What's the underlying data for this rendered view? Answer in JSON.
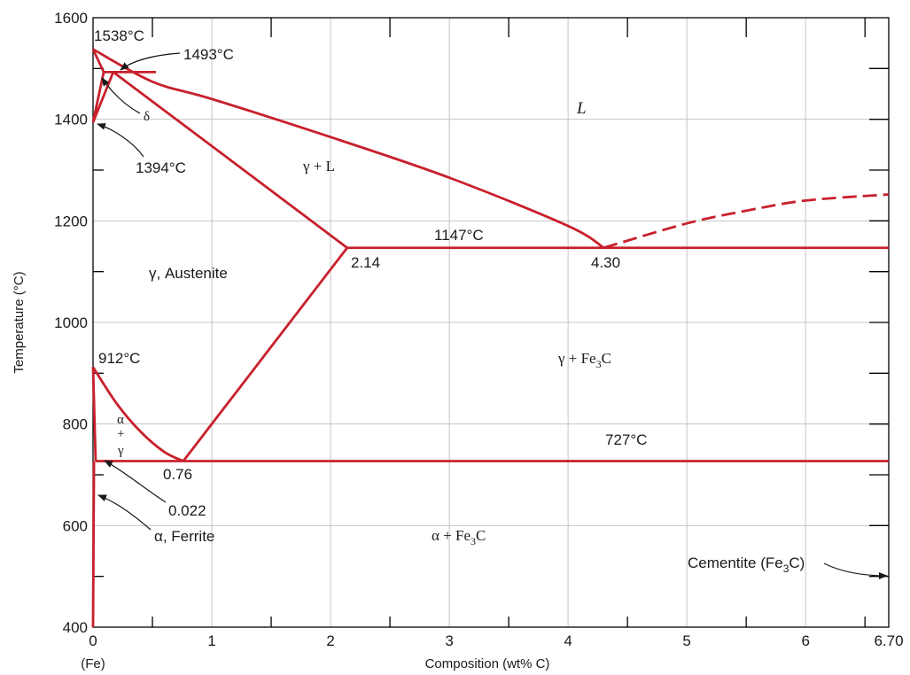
{
  "chart_data": {
    "type": "line",
    "title": "",
    "xlabel": "Composition (wt% C)",
    "ylabel": "Temperature (°C)",
    "xlim": [
      0,
      6.7
    ],
    "ylim": [
      400,
      1600
    ],
    "x_ticks": [
      {
        "value": 0,
        "label": "0"
      },
      {
        "value": 1,
        "label": "1"
      },
      {
        "value": 2,
        "label": "2"
      },
      {
        "value": 3,
        "label": "3"
      },
      {
        "value": 4,
        "label": "4"
      },
      {
        "value": 5,
        "label": "5"
      },
      {
        "value": 6,
        "label": "6"
      },
      {
        "value": 6.7,
        "label": "6.70"
      }
    ],
    "x_sub_label": "(Fe)",
    "y_ticks": [
      {
        "value": 400,
        "label": "400"
      },
      {
        "value": 600,
        "label": "600"
      },
      {
        "value": 800,
        "label": "800"
      },
      {
        "value": 1000,
        "label": "1000"
      },
      {
        "value": 1200,
        "label": "1200"
      },
      {
        "value": 1400,
        "label": "1400"
      },
      {
        "value": 1600,
        "label": "1600"
      }
    ],
    "grid": true,
    "line_color": "#c8202c",
    "series": [
      {
        "style": "solid",
        "x": [
          0,
          0.5,
          1,
          2,
          3,
          4,
          4.3
        ],
        "y": [
          1538,
          1474,
          1440,
          1365,
          1285,
          1190,
          1147
        ]
      },
      {
        "style": "solid",
        "x": [
          0,
          0.09
        ],
        "y": [
          1538,
          1493
        ]
      },
      {
        "style": "solid",
        "x": [
          0.09,
          0.53
        ],
        "y": [
          1493,
          1493
        ]
      },
      {
        "style": "solid",
        "x": [
          0,
          0.09
        ],
        "y": [
          1394,
          1493
        ]
      },
      {
        "style": "solid",
        "x": [
          0,
          0.17
        ],
        "y": [
          1394,
          1493
        ]
      },
      {
        "style": "solid",
        "x": [
          0.17,
          2.14
        ],
        "y": [
          1493,
          1147
        ]
      },
      {
        "style": "solid",
        "x": [
          2.14,
          6.7
        ],
        "y": [
          1147,
          1147
        ]
      },
      {
        "style": "solid",
        "x": [
          0,
          0.2,
          0.4,
          0.6,
          0.76
        ],
        "y": [
          912,
          840,
          785,
          745,
          727
        ]
      },
      {
        "style": "solid",
        "x": [
          0.76,
          2.14
        ],
        "y": [
          727,
          1147
        ]
      },
      {
        "style": "solid",
        "x": [
          0.022,
          6.7
        ],
        "y": [
          727,
          727
        ]
      },
      {
        "style": "solid",
        "x": [
          0,
          0.022
        ],
        "y": [
          912,
          727
        ]
      },
      {
        "style": "solid",
        "x": [
          0,
          0.008
        ],
        "y": [
          400,
          727
        ]
      },
      {
        "style": "dashed",
        "x": [
          4.3,
          5,
          5.5,
          6,
          6.7
        ],
        "y": [
          1147,
          1195,
          1220,
          1240,
          1252
        ]
      }
    ],
    "annotations": {
      "t1538": "1538°C",
      "t1493": "1493°C",
      "t1394": "1394°C",
      "t1147": "1147°C",
      "t912": "912°C",
      "t727": "727°C",
      "c214": "2.14",
      "c430": "4.30",
      "c076": "0.76",
      "c0022": "0.022"
    },
    "phase_labels": {
      "liquid": "L",
      "gamma_liquid": "γ + L",
      "delta": "δ",
      "austenite": "γ, Austenite",
      "gamma_fe3c_pre": "γ + Fe",
      "alpha": "α",
      "plus": "+",
      "gamma": "γ",
      "ferrite": "α, Ferrite",
      "alpha_fe3c_pre": "α + Fe",
      "cementite_pre": "Cementite (Fe",
      "sub3": "3",
      "fe3c_suffix": "C",
      "cementite_suffix": "C)"
    }
  }
}
